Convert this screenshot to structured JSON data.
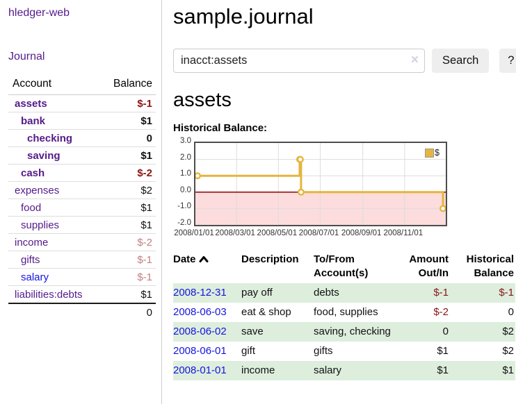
{
  "colors": {
    "link_purple": "#551a8b",
    "link_blue": "#1414e0",
    "negative_dark": "#8b1414",
    "negative_light": "#c28080",
    "row_stripe_green": "#ddeedd",
    "chart_line": "#e4b63d",
    "chart_negative_fill": "#fcdcdc",
    "chart_zero_line": "#8b0000",
    "chart_grid": "#dddddd",
    "chart_border": "#4d4d4d"
  },
  "sidebar": {
    "app_title": "hledger-web",
    "nav": [
      {
        "label": "Journal"
      }
    ],
    "table_header": {
      "account": "Account",
      "balance": "Balance"
    },
    "accounts": [
      {
        "name": "assets",
        "depth": 1,
        "balance": "$-1",
        "bold": true,
        "neg": "dark"
      },
      {
        "name": "bank",
        "depth": 2,
        "balance": "$1",
        "bold": true
      },
      {
        "name": "checking",
        "depth": 3,
        "balance": "0",
        "bold": true
      },
      {
        "name": "saving",
        "depth": 3,
        "balance": "$1",
        "bold": true
      },
      {
        "name": "cash",
        "depth": 2,
        "balance": "$-2",
        "bold": true,
        "neg": "dark"
      },
      {
        "name": "expenses",
        "depth": 1,
        "balance": "$2"
      },
      {
        "name": "food",
        "depth": 2,
        "balance": "$1"
      },
      {
        "name": "supplies",
        "depth": 2,
        "balance": "$1"
      },
      {
        "name": "income",
        "depth": 1,
        "balance": "$-2",
        "neg": "light"
      },
      {
        "name": "gifts",
        "depth": 2,
        "balance": "$-1",
        "neg": "light"
      },
      {
        "name": "salary",
        "depth": 2,
        "balance": "$-1",
        "neg": "light",
        "link_color": "blue"
      },
      {
        "name": "liabilities:debts",
        "depth": 1,
        "balance": "$1"
      }
    ],
    "total": "0"
  },
  "main": {
    "page_title": "sample.journal",
    "search": {
      "value": "inacct:assets",
      "placeholder": "",
      "clear_label": "×",
      "button_label": "Search",
      "help_label": "?"
    },
    "section_heading": "assets",
    "chart_title": "Historical Balance:"
  },
  "chart_data": {
    "type": "line",
    "title": "Historical Balance:",
    "line_style": "step-after",
    "legend": [
      {
        "name": "$",
        "color": "#e4b63d"
      }
    ],
    "legend_position": "top-right",
    "grid": true,
    "x_range": [
      "2008-01-01",
      "2008-12-31"
    ],
    "ylim": [
      -2,
      3
    ],
    "yticks": [
      "3.0",
      "2.0",
      "1.0",
      "0.0",
      "-1.0",
      "-2.0"
    ],
    "xticks": [
      {
        "label": "2008/01/01",
        "date": "2008-01-01"
      },
      {
        "label": "2008/03/01",
        "date": "2008-03-01"
      },
      {
        "label": "2008/05/01",
        "date": "2008-05-01"
      },
      {
        "label": "2008/07/01",
        "date": "2008-07-01"
      },
      {
        "label": "2008/09/01",
        "date": "2008-09-01"
      },
      {
        "label": "2008/11/01",
        "date": "2008-11-01"
      }
    ],
    "series": [
      {
        "name": "$",
        "points": [
          [
            "2008-01-01",
            1
          ],
          [
            "2008-06-01",
            2
          ],
          [
            "2008-06-02",
            2
          ],
          [
            "2008-06-03",
            0
          ],
          [
            "2008-12-31",
            -1
          ]
        ]
      }
    ],
    "negative_region_shaded": true
  },
  "register": {
    "columns": [
      {
        "label": "Date",
        "sortable": true,
        "sorted": "asc"
      },
      {
        "label": "Description"
      },
      {
        "label": "To/From Account(s)"
      },
      {
        "label": "Amount Out/In",
        "align": "right"
      },
      {
        "label": "Historical Balance",
        "align": "right"
      }
    ],
    "rows": [
      {
        "date": "2008-12-31",
        "description": "pay off",
        "accounts": "debts",
        "amount": "$-1",
        "amount_negative": true,
        "balance": "$-1",
        "balance_negative": true
      },
      {
        "date": "2008-06-03",
        "description": "eat & shop",
        "accounts": "food, supplies",
        "amount": "$-2",
        "amount_negative": true,
        "balance": "0",
        "balance_negative": false
      },
      {
        "date": "2008-06-02",
        "description": "save",
        "accounts": "saving, checking",
        "amount": "0",
        "amount_negative": false,
        "balance": "$2",
        "balance_negative": false
      },
      {
        "date": "2008-06-01",
        "description": "gift",
        "accounts": "gifts",
        "amount": "$1",
        "amount_negative": false,
        "balance": "$2",
        "balance_negative": false
      },
      {
        "date": "2008-01-01",
        "description": "income",
        "accounts": "salary",
        "amount": "$1",
        "amount_negative": false,
        "balance": "$1",
        "balance_negative": false
      }
    ]
  }
}
